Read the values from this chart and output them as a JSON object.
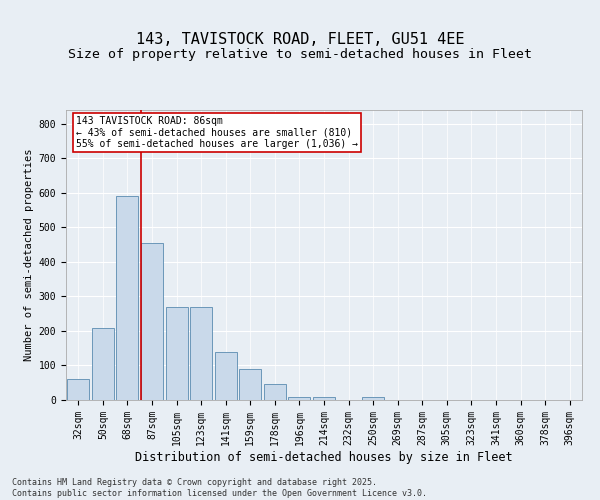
{
  "title1": "143, TAVISTOCK ROAD, FLEET, GU51 4EE",
  "title2": "Size of property relative to semi-detached houses in Fleet",
  "xlabel": "Distribution of semi-detached houses by size in Fleet",
  "ylabel": "Number of semi-detached properties",
  "categories": [
    "32sqm",
    "50sqm",
    "68sqm",
    "87sqm",
    "105sqm",
    "123sqm",
    "141sqm",
    "159sqm",
    "178sqm",
    "196sqm",
    "214sqm",
    "232sqm",
    "250sqm",
    "269sqm",
    "287sqm",
    "305sqm",
    "323sqm",
    "341sqm",
    "360sqm",
    "378sqm",
    "396sqm"
  ],
  "values": [
    60,
    210,
    590,
    455,
    270,
    270,
    140,
    90,
    45,
    10,
    10,
    0,
    10,
    0,
    0,
    0,
    0,
    0,
    0,
    0,
    0
  ],
  "bar_color": "#c9d9ea",
  "bar_edge_color": "#5a8bb0",
  "marker_line_color": "#cc0000",
  "annotation_text": "143 TAVISTOCK ROAD: 86sqm\n← 43% of semi-detached houses are smaller (810)\n55% of semi-detached houses are larger (1,036) →",
  "annotation_box_color": "#ffffff",
  "annotation_box_edge": "#cc0000",
  "ylim": [
    0,
    840
  ],
  "yticks": [
    0,
    100,
    200,
    300,
    400,
    500,
    600,
    700,
    800
  ],
  "bg_color": "#e8eef4",
  "plot_bg_color": "#e8eef4",
  "footer_text": "Contains HM Land Registry data © Crown copyright and database right 2025.\nContains public sector information licensed under the Open Government Licence v3.0.",
  "title1_fontsize": 11,
  "title2_fontsize": 9.5,
  "xlabel_fontsize": 8.5,
  "ylabel_fontsize": 7.5,
  "tick_fontsize": 7,
  "footer_fontsize": 6,
  "annotation_fontsize": 7
}
